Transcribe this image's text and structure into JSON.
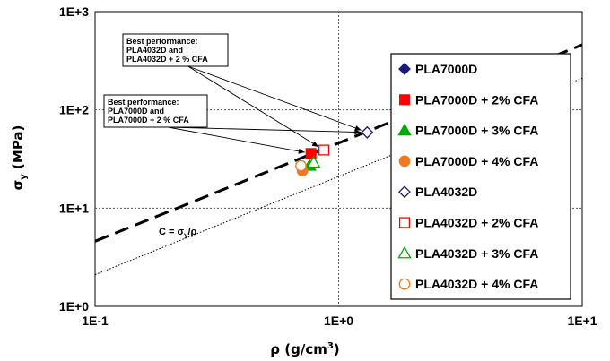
{
  "chart_data": {
    "type": "scatter",
    "x_scale": "log",
    "y_scale": "log",
    "xlim": [
      0.1,
      10
    ],
    "ylim": [
      1,
      1000
    ],
    "x_ticks": [
      "1E-1",
      "1E+0",
      "1E+1"
    ],
    "y_ticks": [
      "1E+0",
      "1E+1",
      "1E+2",
      "1E+3"
    ],
    "xlabel": "ρ (g/cm³)",
    "ylabel": "σy (MPa)",
    "grid": true,
    "legend_position": "right",
    "series": [
      {
        "name": "PLA7000D",
        "marker": "diamond",
        "filled": true,
        "color": "#1a1a7a",
        "x": 1.31,
        "y": 59
      },
      {
        "name": "PLA7000D + 2% CFA",
        "marker": "square",
        "filled": true,
        "color": "#ff0000",
        "x": 0.77,
        "y": 36
      },
      {
        "name": "PLA7000D + 3% CFA",
        "marker": "triangle",
        "filled": true,
        "color": "#00aa00",
        "x": 0.76,
        "y": 27
      },
      {
        "name": "PLA7000D + 4% CFA",
        "marker": "circle",
        "filled": true,
        "color": "#f07820",
        "x": 0.71,
        "y": 24
      },
      {
        "name": "PLA4032D",
        "marker": "diamond",
        "filled": false,
        "color": "#1a1a7a",
        "x": 1.31,
        "y": 59
      },
      {
        "name": "PLA4032D + 2% CFA",
        "marker": "square",
        "filled": false,
        "color": "#ff0000",
        "x": 0.87,
        "y": 39
      },
      {
        "name": "PLA4032D + 3% CFA",
        "marker": "triangle",
        "filled": false,
        "color": "#00aa00",
        "x": 0.79,
        "y": 29
      },
      {
        "name": "PLA4032D + 4% CFA",
        "marker": "circle",
        "filled": false,
        "color": "#f07820",
        "x": 0.7,
        "y": 27
      }
    ],
    "guide_lines": [
      {
        "label": "C = σy/ρ",
        "slope": 1,
        "c": 46,
        "style": "dashed"
      },
      {
        "label": "",
        "slope": 1,
        "c": 21,
        "style": "dotted"
      }
    ],
    "annotations": [
      {
        "lines": [
          "Best performance:",
          "PLA4032D and",
          "PLA4032D + 2 % CFA"
        ],
        "targets": [
          [
            1.31,
            59
          ],
          [
            0.87,
            39
          ]
        ]
      },
      {
        "lines": [
          "Best performance:",
          "PLA7000D and",
          "PLA7000D + 2 % CFA"
        ],
        "targets": [
          [
            1.31,
            59
          ],
          [
            0.77,
            36
          ]
        ]
      }
    ]
  },
  "text": {
    "x_label_rho": "ρ",
    "x_label_unit": " (g/cm",
    "x_label_sup": "3",
    "x_label_close": ")",
    "y_label_sigma": "σ",
    "y_label_sub": "y",
    "y_label_unit": " (MPa)",
    "c_label_main": "C = σ",
    "c_label_sub": "y",
    "c_label_tail": "/ρ"
  }
}
